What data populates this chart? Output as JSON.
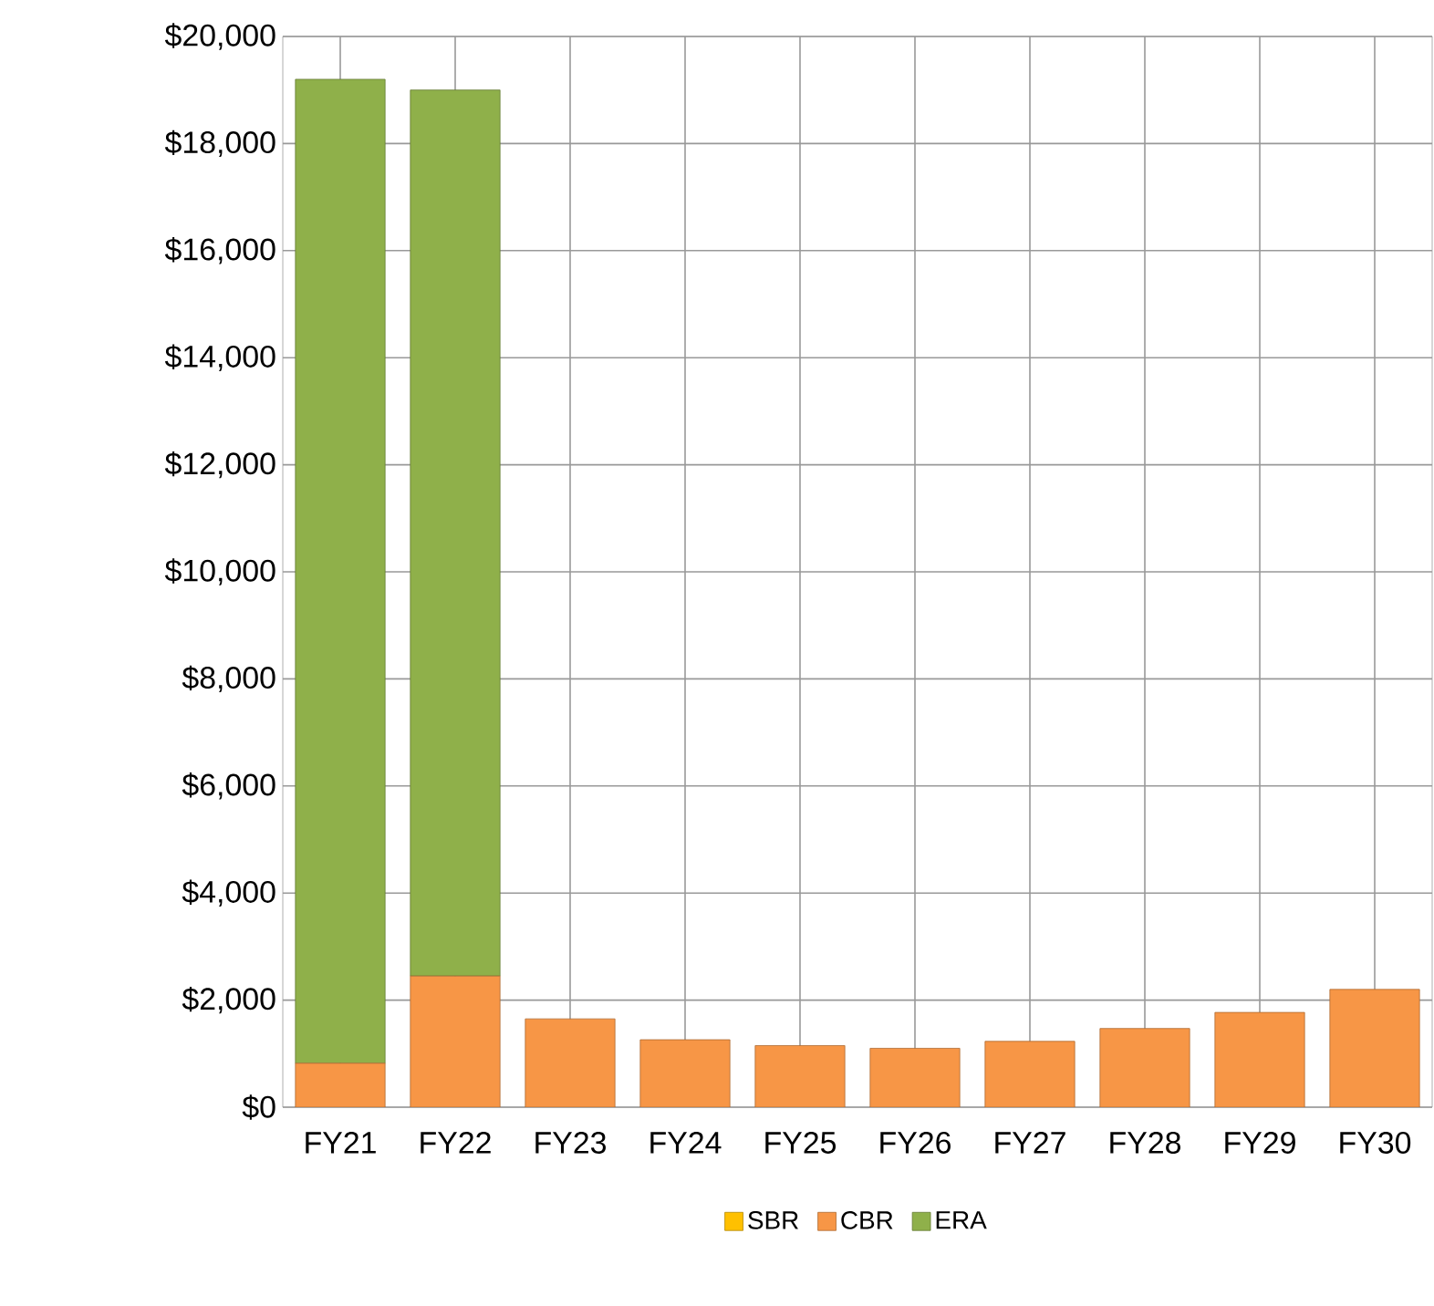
{
  "chart_data": {
    "type": "bar",
    "stacked": true,
    "categories": [
      "FY21",
      "FY22",
      "FY23",
      "FY24",
      "FY25",
      "FY26",
      "FY27",
      "FY28",
      "FY29",
      "FY30"
    ],
    "series": [
      {
        "name": "SBR",
        "color": "#ffc000",
        "values": [
          0,
          0,
          0,
          0,
          0,
          0,
          0,
          0,
          0,
          0
        ]
      },
      {
        "name": "CBR",
        "color": "#f79646",
        "values": [
          820,
          2450,
          1650,
          1260,
          1150,
          1100,
          1230,
          1470,
          1770,
          2200
        ]
      },
      {
        "name": "ERA",
        "color": "#8fb04a",
        "values": [
          18380,
          16550,
          null,
          null,
          null,
          null,
          null,
          null,
          null,
          null
        ]
      }
    ],
    "ylim": [
      0,
      20000
    ],
    "yticks": [
      {
        "value": 0,
        "label": "$0"
      },
      {
        "value": 2000,
        "label": "$2,000"
      },
      {
        "value": 4000,
        "label": "$4,000"
      },
      {
        "value": 6000,
        "label": "$6,000"
      },
      {
        "value": 8000,
        "label": "$8,000"
      },
      {
        "value": 10000,
        "label": "$10,000"
      },
      {
        "value": 12000,
        "label": "$12,000"
      },
      {
        "value": 14000,
        "label": "$14,000"
      },
      {
        "value": 16000,
        "label": "$16,000"
      },
      {
        "value": 18000,
        "label": "$18,000"
      },
      {
        "value": 20000,
        "label": "$20,000"
      }
    ],
    "grid": true,
    "legend": "bottom"
  }
}
